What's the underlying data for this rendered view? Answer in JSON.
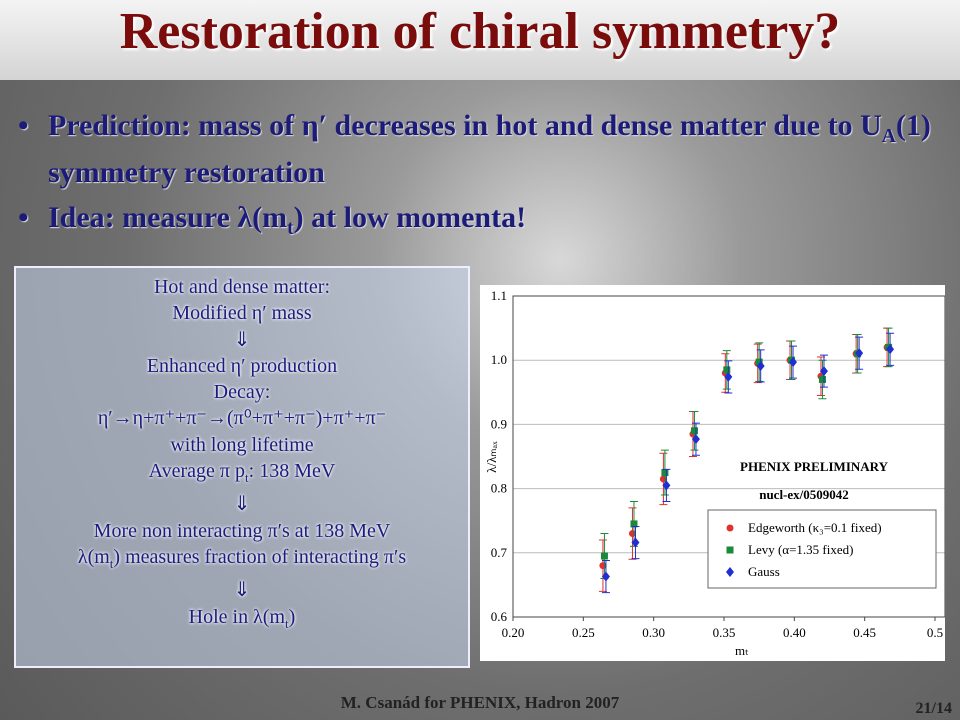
{
  "title": "Restoration of chiral symmetry?",
  "bullets": [
    [
      {
        "text": "Prediction: mass of η′ decreases in hot and dense matter due to  U"
      },
      {
        "sub": "A"
      },
      {
        "text": "(1) symmetry restoration"
      }
    ],
    [
      {
        "text": "Idea: measure λ(m"
      },
      {
        "sub": "t"
      },
      {
        "text": ") at low momenta!"
      }
    ]
  ],
  "box": [
    [
      {
        "text": "Hot and dense matter:"
      }
    ],
    [
      {
        "text": "Modified η′ mass"
      }
    ],
    [
      {
        "text": "⇓"
      }
    ],
    [
      {
        "text": "Enhanced η′ production"
      }
    ],
    [
      {
        "text": "Decay:"
      }
    ],
    [
      {
        "text": "η′→η+π⁺+π⁻→(π⁰+π⁺+π⁻)+π⁺+π⁻"
      }
    ],
    [
      {
        "text": "with long lifetime"
      }
    ],
    [
      {
        "text": "Average π p"
      },
      {
        "sub": "t"
      },
      {
        "text": ": 138 MeV"
      }
    ],
    [
      {
        "text": "⇓"
      }
    ],
    [
      {
        "text": "More non interacting π′s at 138 MeV"
      }
    ],
    [
      {
        "text": "λ(m"
      },
      {
        "sub": "t"
      },
      {
        "text": ") measures fraction of interacting π′s"
      }
    ],
    [
      {
        "text": "⇓"
      }
    ],
    [
      {
        "text": "Hole in λ(m"
      },
      {
        "sub": "t"
      },
      {
        "text": ")"
      }
    ]
  ],
  "footer": "M. Csanád for PHENIX, Hadron 2007",
  "page": "21/14",
  "chart_data": {
    "type": "scatter",
    "x_label": "mₜ",
    "y_label": "λ/λₘₐₓ",
    "annotations": [
      "PHENIX PRELIMINARY",
      "nucl-ex/0509042"
    ],
    "x": [
      0.265,
      0.286,
      0.308,
      0.329,
      0.352,
      0.375,
      0.398,
      0.42,
      0.445,
      0.467
    ],
    "series": [
      {
        "name": "Edgeworth (κ₃=0.1 fixed)",
        "color": "#e03030",
        "marker": "circle",
        "values": [
          0.68,
          0.73,
          0.815,
          0.885,
          0.98,
          0.995,
          1.0,
          0.975,
          1.01,
          1.02
        ],
        "errors": [
          0.04,
          0.04,
          0.04,
          0.035,
          0.03,
          0.03,
          0.03,
          0.03,
          0.03,
          0.03
        ]
      },
      {
        "name": "Levy (α=1.35 fixed)",
        "color": "#1a8a3a",
        "marker": "square",
        "values": [
          0.695,
          0.745,
          0.825,
          0.89,
          0.985,
          0.997,
          1.0,
          0.97,
          1.01,
          1.02
        ],
        "errors": [
          0.035,
          0.035,
          0.035,
          0.03,
          0.03,
          0.03,
          0.03,
          0.03,
          0.03,
          0.03
        ]
      },
      {
        "name": "Gauss",
        "color": "#2030d0",
        "marker": "diamond",
        "values": [
          0.663,
          0.716,
          0.805,
          0.877,
          0.974,
          0.991,
          0.997,
          0.983,
          1.011,
          1.017
        ],
        "errors": [
          0.025,
          0.025,
          0.025,
          0.025,
          0.025,
          0.025,
          0.025,
          0.025,
          0.025,
          0.025
        ]
      }
    ],
    "xlim": [
      0.2,
      0.5
    ],
    "xticks": [
      {
        "value": 0.2,
        "label": "0.20"
      },
      0.25,
      {
        "value": 0.3,
        "label": "0.30"
      },
      0.35,
      {
        "value": 0.4,
        "label": "0.40"
      },
      0.45,
      0.5
    ],
    "ylim": [
      0.6,
      1.1
    ],
    "yticks": [
      0.6,
      0.7,
      0.8,
      0.9,
      {
        "value": 1,
        "label": "1.0"
      },
      1.1
    ],
    "grid": true
  }
}
